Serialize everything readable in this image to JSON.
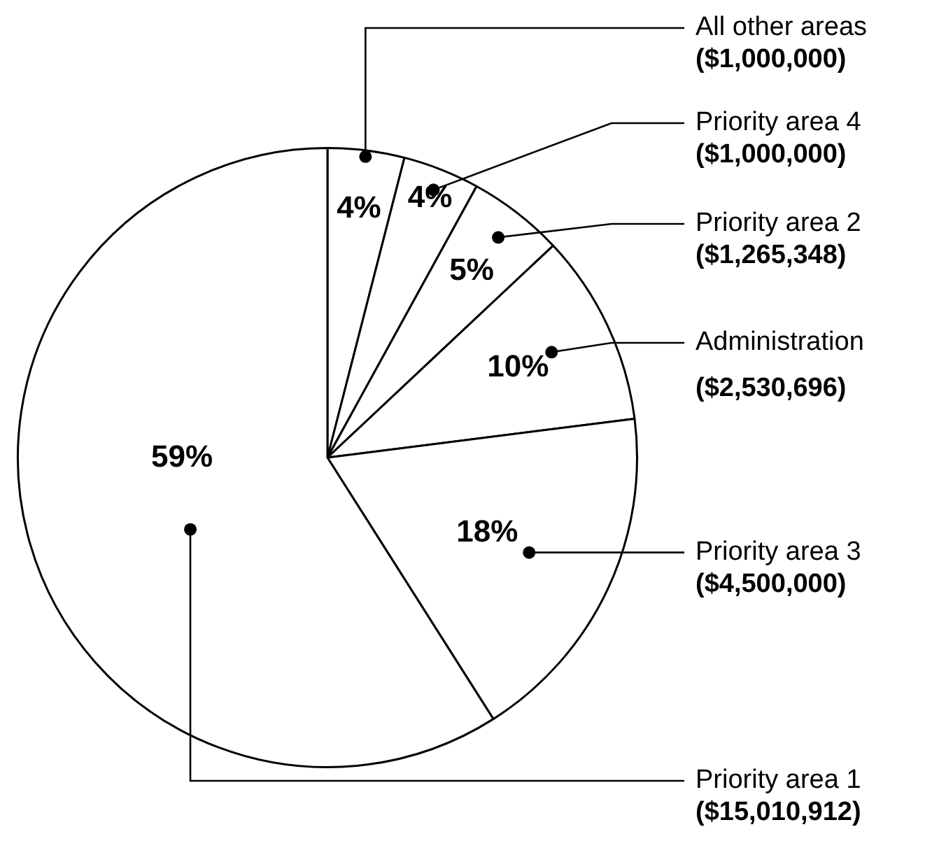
{
  "chart_data": {
    "type": "pie",
    "categories": [
      "All other areas\n($1,000,000)",
      "Priority area 4\n($1,000,000)",
      "Priority area 2\n($1,265,348)",
      "Administration\n($2,530,696)",
      "Priority area 3\n($4,500,000)",
      "Priority area 1\n($15,010,912)"
    ],
    "values": [
      4,
      4,
      5,
      10,
      18,
      59
    ],
    "value_labels": [
      "4%",
      "4%",
      "5%",
      "10%",
      "18%",
      "59%"
    ],
    "colors": [
      "#ffffff",
      "#ffffff",
      "#ffffff",
      "#ffffff",
      "#ffffff",
      "#ffffff"
    ],
    "legend": false
  }
}
